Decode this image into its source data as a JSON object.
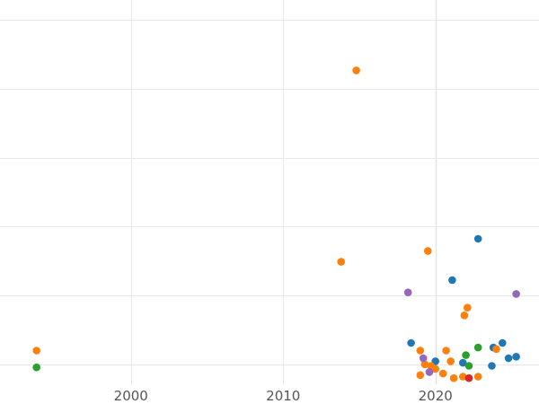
{
  "chart_data": {
    "type": "scatter",
    "title": "",
    "xlabel": "",
    "ylabel": "",
    "xlim": [
      1991.4,
      2026.8
    ],
    "ylim": [
      -1.3,
      23.8
    ],
    "x_ticks": [
      2000,
      2010,
      2020
    ],
    "x_tick_labels": [
      "2000",
      "2010",
      "2020"
    ],
    "y_gridlines": [
      0,
      4.5,
      9,
      13.5,
      18,
      22.5
    ],
    "grid": true,
    "legend": "none",
    "series": [
      {
        "name": "blue",
        "color": "#1f77b4",
        "points": [
          {
            "x": 2022.8,
            "y": 8.2
          },
          {
            "x": 2021.1,
            "y": 5.5
          },
          {
            "x": 2018.4,
            "y": 1.4
          },
          {
            "x": 2024.4,
            "y": 1.4
          },
          {
            "x": 2023.8,
            "y": 1.1
          },
          {
            "x": 2025.3,
            "y": 0.5
          },
          {
            "x": 2024.8,
            "y": 0.4
          },
          {
            "x": 2020.0,
            "y": 0.2
          },
          {
            "x": 2021.8,
            "y": 0.1
          },
          {
            "x": 2023.7,
            "y": -0.1
          }
        ]
      },
      {
        "name": "orange",
        "color": "#ff7f0e",
        "points": [
          {
            "x": 2014.8,
            "y": 19.2
          },
          {
            "x": 2019.5,
            "y": 7.4
          },
          {
            "x": 2013.8,
            "y": 6.7
          },
          {
            "x": 2022.1,
            "y": 3.7
          },
          {
            "x": 2021.9,
            "y": 3.2
          },
          {
            "x": 1993.8,
            "y": 0.9
          },
          {
            "x": 2019.0,
            "y": 0.9
          },
          {
            "x": 2020.7,
            "y": 0.9
          },
          {
            "x": 2024.0,
            "y": 1.0
          },
          {
            "x": 2021.0,
            "y": 0.2
          },
          {
            "x": 2019.3,
            "y": 0.0
          },
          {
            "x": 2019.7,
            "y": -0.1
          },
          {
            "x": 2020.0,
            "y": -0.3
          },
          {
            "x": 2019.0,
            "y": -0.7
          },
          {
            "x": 2020.5,
            "y": -0.6
          },
          {
            "x": 2021.2,
            "y": -0.9
          },
          {
            "x": 2021.8,
            "y": -0.8
          },
          {
            "x": 2022.8,
            "y": -0.8
          }
        ]
      },
      {
        "name": "green",
        "color": "#2ca02c",
        "points": [
          {
            "x": 1993.8,
            "y": -0.2
          },
          {
            "x": 2022.8,
            "y": 1.1
          },
          {
            "x": 2022.0,
            "y": 0.6
          },
          {
            "x": 2022.2,
            "y": -0.1
          }
        ]
      },
      {
        "name": "red",
        "color": "#d62728",
        "points": [
          {
            "x": 2022.2,
            "y": -0.9
          }
        ]
      },
      {
        "name": "purple",
        "color": "#9467bd",
        "points": [
          {
            "x": 2018.2,
            "y": 4.7
          },
          {
            "x": 2025.3,
            "y": 4.6
          },
          {
            "x": 2019.2,
            "y": 0.4
          },
          {
            "x": 2019.6,
            "y": -0.5
          }
        ]
      }
    ]
  }
}
